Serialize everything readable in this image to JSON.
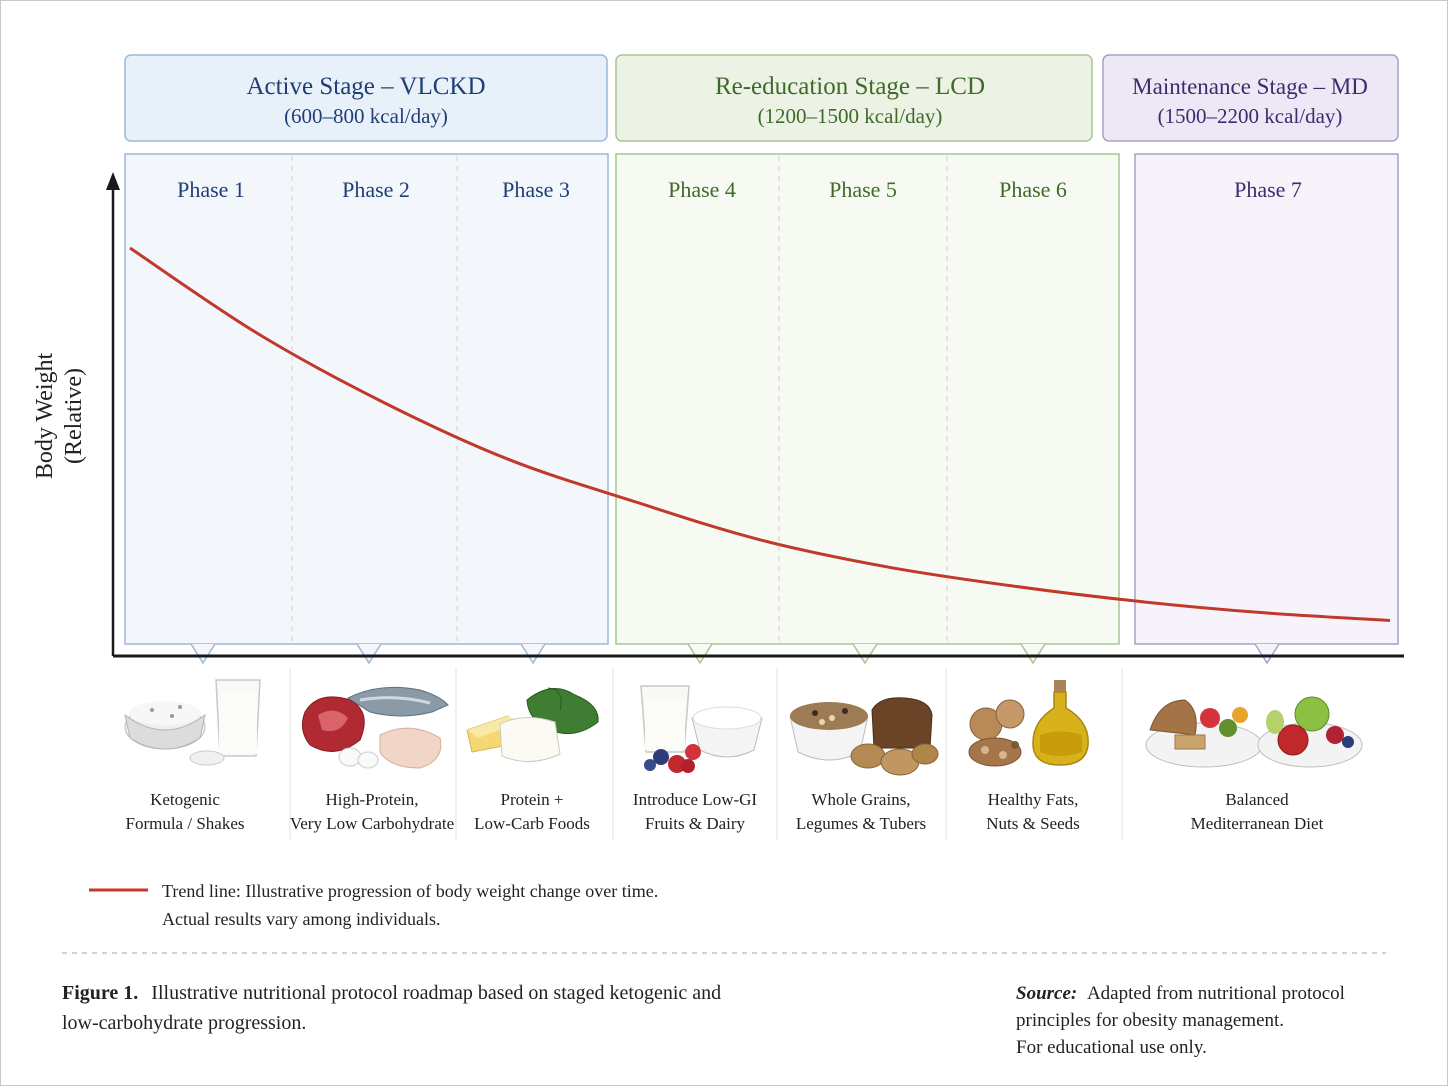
{
  "stages": [
    {
      "title": "Active Stage – VLCKD",
      "subtitle": "(600–800 kcal/day)",
      "fill": "#e8f0f9",
      "stroke": "#9cb8d8",
      "text": "#1f3f73",
      "panel_fill": "#f3f7fc"
    },
    {
      "title": "Re-education Stage – LCD",
      "subtitle": "(1200–1500 kcal/day)",
      "fill": "#ecf3e4",
      "stroke": "#a9c490",
      "text": "#3f6a2a",
      "panel_fill": "#f7faf3"
    },
    {
      "title": "Maintenance Stage – MD",
      "subtitle": "(1500–2200 kcal/day)",
      "fill": "#ece8f5",
      "stroke": "#ab9dcc",
      "text": "#3b2d6d",
      "panel_fill": "#f6f4fa"
    }
  ],
  "phases": [
    {
      "label": "Phase 1",
      "stage": 0,
      "food_line1": "Ketogenic",
      "food_line2": "Formula / Shakes",
      "icon": "shake-and-powder-icon"
    },
    {
      "label": "Phase 2",
      "stage": 0,
      "food_line1": "High-Protein,",
      "food_line2": "Very Low Carbohydrate",
      "icon": "meat-fish-eggs-icon"
    },
    {
      "label": "Phase 3",
      "stage": 0,
      "food_line1": "Protein +",
      "food_line2": "Low-Carb Foods",
      "icon": "cheese-and-spinach-icon"
    },
    {
      "label": "Phase 4",
      "stage": 1,
      "food_line1": "Introduce Low-GI",
      "food_line2": "Fruits & Dairy",
      "icon": "milk-yogurt-berries-icon"
    },
    {
      "label": "Phase 5",
      "stage": 1,
      "food_line1": "Whole Grains,",
      "food_line2": "Legumes & Tubers",
      "icon": "grains-bread-potatoes-icon"
    },
    {
      "label": "Phase 6",
      "stage": 1,
      "food_line1": "Healthy Fats,",
      "food_line2": "Nuts & Seeds",
      "icon": "nuts-and-olive-oil-icon"
    },
    {
      "label": "Phase 7",
      "stage": 2,
      "food_line1": "Balanced",
      "food_line2": "Mediterranean Diet",
      "icon": "mediterranean-plates-icon"
    }
  ],
  "axis": {
    "ylabel_line1": "Body Weight",
    "ylabel_line2": "(Relative)"
  },
  "trend": {
    "color": "#c0392b",
    "points": [
      [
        0,
        1.0
      ],
      [
        0.1,
        0.78
      ],
      [
        0.2,
        0.6
      ],
      [
        0.3,
        0.45
      ],
      [
        0.4,
        0.34
      ],
      [
        0.5,
        0.24
      ],
      [
        0.6,
        0.17
      ],
      [
        0.7,
        0.12
      ],
      [
        0.8,
        0.08
      ],
      [
        0.9,
        0.05
      ],
      [
        1.0,
        0.03
      ]
    ]
  },
  "legend": {
    "line1": "Trend line: Illustrative progression of body weight change over time.",
    "line2": "Actual results vary among individuals."
  },
  "caption": {
    "label": "Figure 1.",
    "line1": "Illustrative nutritional protocol roadmap based on staged ketogenic and",
    "line2": "low-carbohydrate progression."
  },
  "source": {
    "label": "Source:",
    "line1": "Adapted from nutritional protocol",
    "line2": "principles for obesity management.",
    "line3": "For educational use only."
  }
}
